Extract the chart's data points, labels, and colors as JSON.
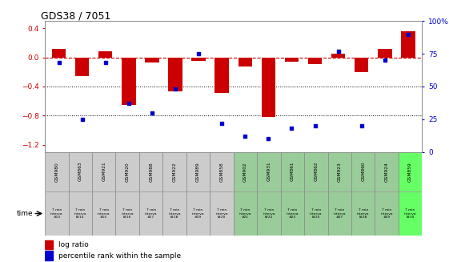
{
  "title": "GDS38 / 7051",
  "samples": [
    "GSM980",
    "GSM863",
    "GSM921",
    "GSM920",
    "GSM988",
    "GSM922",
    "GSM989",
    "GSM858",
    "GSM902",
    "GSM931",
    "GSM861",
    "GSM862",
    "GSM923",
    "GSM860",
    "GSM924",
    "GSM859"
  ],
  "time_labels": [
    [
      "7 min",
      "interva",
      "#13"
    ],
    [
      "7 min",
      "interva",
      "l#14"
    ],
    [
      "7 min",
      "interva",
      "#15"
    ],
    [
      "7 min",
      "interva",
      "l#16"
    ],
    [
      "7 min",
      "interva",
      "#17"
    ],
    [
      "7 min",
      "interva",
      "l#18"
    ],
    [
      "7 min",
      "interva",
      "#19"
    ],
    [
      "7 min",
      "interva",
      "l#20"
    ],
    [
      "7 min",
      "interva",
      "#21"
    ],
    [
      "7 min",
      "interva",
      "l#22"
    ],
    [
      "7 min",
      "interva",
      "#23"
    ],
    [
      "7 min",
      "interva",
      "l#25"
    ],
    [
      "7 min",
      "interva",
      "#27"
    ],
    [
      "7 min",
      "interva",
      "l#28"
    ],
    [
      "7 min",
      "interva",
      "#29"
    ],
    [
      "7 min",
      "interva",
      "l#30"
    ]
  ],
  "log_ratio": [
    0.12,
    -0.26,
    0.08,
    -0.65,
    -0.07,
    -0.47,
    -0.05,
    -0.49,
    -0.13,
    -0.82,
    -0.06,
    -0.09,
    0.05,
    -0.2,
    0.12,
    0.36
  ],
  "percentile": [
    68,
    25,
    68,
    37,
    30,
    48,
    75,
    22,
    12,
    10,
    18,
    20,
    77,
    20,
    70,
    90
  ],
  "bar_color": "#cc0000",
  "dot_color": "#0000cc",
  "bg_color": "#ffffff",
  "dashed_line_color": "#cc0000",
  "dotted_line_color": "#000000",
  "ylim_left": [
    -1.3,
    0.5
  ],
  "ylim_right": [
    0,
    100
  ],
  "yticks_left": [
    -1.2,
    -0.8,
    -0.4,
    0.0,
    0.4
  ],
  "yticks_right": [
    0,
    25,
    50,
    75,
    100
  ],
  "yticks_right_labels": [
    "0",
    "25",
    "50",
    "75",
    "100%"
  ],
  "dotted_lines": [
    -0.4,
    -0.8
  ],
  "xlabel": "time",
  "legend_log": "log ratio",
  "legend_pct": "percentile rank within the sample",
  "sample_bg_gray": "#cccccc",
  "sample_bg_green": "#99cc99",
  "sample_bg_lightgreen": "#66ff66",
  "sample_bg_colors": [
    "#cccccc",
    "#cccccc",
    "#cccccc",
    "#cccccc",
    "#cccccc",
    "#cccccc",
    "#cccccc",
    "#cccccc",
    "#99cc99",
    "#99cc99",
    "#99cc99",
    "#99cc99",
    "#99cc99",
    "#99cc99",
    "#99cc99",
    "#66ff66"
  ],
  "time_bg_colors": [
    "#cccccc",
    "#cccccc",
    "#cccccc",
    "#cccccc",
    "#cccccc",
    "#cccccc",
    "#cccccc",
    "#cccccc",
    "#99cc99",
    "#99cc99",
    "#99cc99",
    "#99cc99",
    "#99cc99",
    "#99cc99",
    "#99cc99",
    "#66ff66"
  ]
}
